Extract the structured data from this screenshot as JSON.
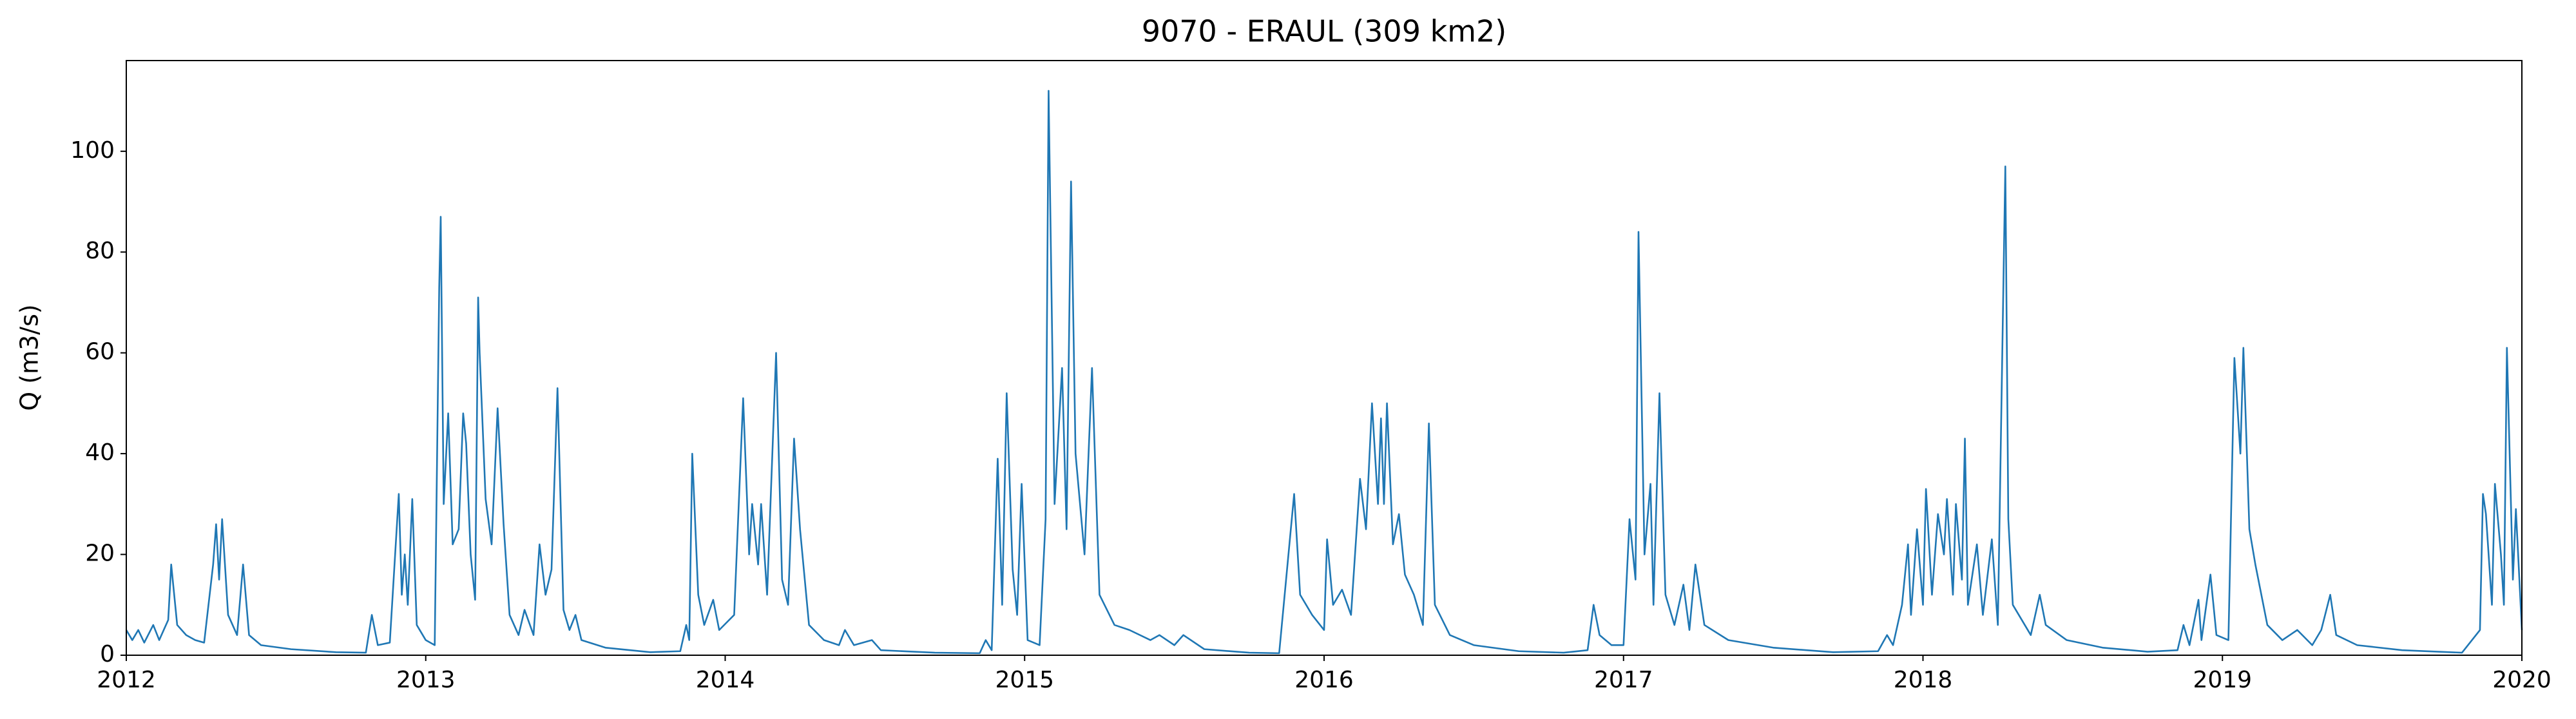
{
  "chart_data": {
    "type": "line",
    "title": "9070 - ERAUL (309 km2)",
    "ylabel": "Q (m3/s)",
    "x": [
      2012.0,
      2012.02,
      2012.04,
      2012.06,
      2012.09,
      2012.11,
      2012.14,
      2012.15,
      2012.17,
      2012.2,
      2012.23,
      2012.26,
      2012.29,
      2012.3,
      2012.31,
      2012.32,
      2012.34,
      2012.37,
      2012.39,
      2012.41,
      2012.45,
      2012.55,
      2012.7,
      2012.8,
      2012.82,
      2012.84,
      2012.88,
      2012.91,
      2012.92,
      2012.93,
      2012.94,
      2012.955,
      2012.97,
      2013.0,
      2013.03,
      2013.045,
      2013.05,
      2013.06,
      2013.075,
      2013.09,
      2013.11,
      2013.125,
      2013.135,
      2013.15,
      2013.165,
      2013.175,
      2013.18,
      2013.2,
      2013.22,
      2013.24,
      2013.26,
      2013.28,
      2013.31,
      2013.33,
      2013.36,
      2013.38,
      2013.4,
      2013.42,
      2013.44,
      2013.46,
      2013.48,
      2013.5,
      2013.52,
      2013.6,
      2013.75,
      2013.85,
      2013.87,
      2013.88,
      2013.89,
      2013.91,
      2013.93,
      2013.96,
      2013.98,
      2014.03,
      2014.06,
      2014.08,
      2014.09,
      2014.11,
      2014.12,
      2014.14,
      2014.17,
      2014.19,
      2014.21,
      2014.23,
      2014.25,
      2014.28,
      2014.33,
      2014.38,
      2014.4,
      2014.43,
      2014.49,
      2014.52,
      2014.7,
      2014.85,
      2014.87,
      2014.89,
      2014.91,
      2014.925,
      2014.94,
      2014.96,
      2014.975,
      2014.99,
      2015.01,
      2015.05,
      2015.07,
      2015.08,
      2015.1,
      2015.125,
      2015.14,
      2015.155,
      2015.17,
      2015.2,
      2015.225,
      2015.25,
      2015.3,
      2015.35,
      2015.42,
      2015.45,
      2015.5,
      2015.53,
      2015.6,
      2015.75,
      2015.85,
      2015.9,
      2015.92,
      2015.96,
      2016.0,
      2016.01,
      2016.03,
      2016.06,
      2016.09,
      2016.12,
      2016.14,
      2016.16,
      2016.18,
      2016.19,
      2016.2,
      2016.21,
      2016.23,
      2016.25,
      2016.27,
      2016.3,
      2016.33,
      2016.35,
      2016.37,
      2016.42,
      2016.5,
      2016.65,
      2016.8,
      2016.88,
      2016.9,
      2016.92,
      2016.96,
      2017.0,
      2017.02,
      2017.04,
      2017.05,
      2017.07,
      2017.09,
      2017.1,
      2017.12,
      2017.14,
      2017.17,
      2017.2,
      2017.22,
      2017.24,
      2017.27,
      2017.35,
      2017.5,
      2017.7,
      2017.85,
      2017.88,
      2017.9,
      2017.93,
      2017.95,
      2017.96,
      2017.98,
      2018.0,
      2018.01,
      2018.03,
      2018.05,
      2018.07,
      2018.08,
      2018.1,
      2018.11,
      2018.13,
      2018.14,
      2018.15,
      2018.18,
      2018.2,
      2018.23,
      2018.25,
      2018.275,
      2018.285,
      2018.3,
      2018.36,
      2018.39,
      2018.41,
      2018.48,
      2018.6,
      2018.75,
      2018.85,
      2018.87,
      2018.89,
      2018.92,
      2018.93,
      2018.96,
      2018.98,
      2019.02,
      2019.04,
      2019.06,
      2019.07,
      2019.09,
      2019.11,
      2019.15,
      2019.2,
      2019.25,
      2019.3,
      2019.33,
      2019.36,
      2019.38,
      2019.45,
      2019.6,
      2019.8,
      2019.86,
      2019.87,
      2019.88,
      2019.9,
      2019.91,
      2019.93,
      2019.94,
      2019.95,
      2019.97,
      2019.98,
      2020.0
    ],
    "values": [
      5,
      3,
      5,
      2.5,
      6,
      3,
      7,
      18,
      6,
      4,
      3,
      2.5,
      18,
      26,
      15,
      27,
      8,
      4,
      18,
      4,
      2,
      1.2,
      0.6,
      0.5,
      8,
      2,
      2.5,
      32,
      12,
      20,
      10,
      31,
      6,
      3,
      2,
      73,
      87,
      30,
      48,
      22,
      25,
      48,
      42,
      20,
      11,
      71,
      60,
      31,
      22,
      49,
      26,
      8,
      4,
      9,
      4,
      22,
      12,
      17,
      53,
      9,
      5,
      8,
      3,
      1.5,
      0.6,
      0.8,
      6,
      3,
      40,
      12,
      6,
      11,
      5,
      8,
      51,
      20,
      30,
      18,
      30,
      12,
      60,
      15,
      10,
      43,
      25,
      6,
      3,
      2,
      5,
      2,
      3,
      1,
      0.5,
      0.4,
      3,
      1,
      39,
      10,
      52,
      17,
      8,
      34,
      3,
      2,
      27,
      112,
      30,
      57,
      25,
      94,
      40,
      20,
      57,
      12,
      6,
      5,
      3,
      4,
      2,
      4,
      1.2,
      0.5,
      0.4,
      32,
      12,
      8,
      5,
      23,
      10,
      13,
      8,
      35,
      25,
      50,
      30,
      47,
      30,
      50,
      22,
      28,
      16,
      12,
      6,
      46,
      10,
      4,
      2,
      0.8,
      0.5,
      1,
      10,
      4,
      2,
      2,
      27,
      15,
      84,
      20,
      34,
      10,
      52,
      12,
      6,
      14,
      5,
      18,
      6,
      3,
      1.5,
      0.6,
      0.8,
      4,
      2,
      10,
      22,
      8,
      25,
      10,
      33,
      12,
      28,
      20,
      31,
      12,
      30,
      15,
      43,
      10,
      22,
      8,
      23,
      6,
      97,
      27,
      10,
      4,
      12,
      6,
      3,
      1.5,
      0.7,
      1,
      6,
      2,
      11,
      3,
      16,
      4,
      3,
      59,
      40,
      61,
      25,
      18,
      6,
      3,
      5,
      2,
      5,
      12,
      4,
      2,
      1,
      0.5,
      5,
      32,
      28,
      10,
      34,
      20,
      10,
      61,
      15,
      29,
      5
    ],
    "color": "#1f77b4",
    "xlim": [
      2012,
      2020
    ],
    "xticks": [
      2012,
      2013,
      2014,
      2015,
      2016,
      2017,
      2018,
      2019,
      2020
    ],
    "ylim": [
      0,
      118
    ],
    "yticks": [
      0,
      20,
      40,
      60,
      80,
      100
    ]
  }
}
